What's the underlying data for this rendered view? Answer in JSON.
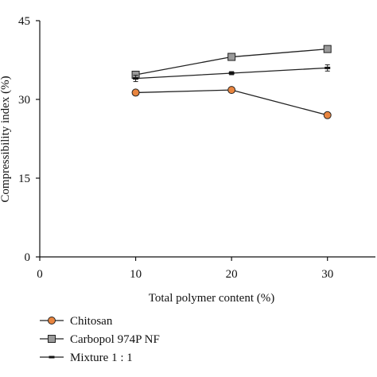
{
  "chart_data": {
    "type": "line",
    "xlabel": "Total polymer content (%)",
    "ylabel": "Compressibility index (%)",
    "xlim": [
      0,
      35
    ],
    "ylim": [
      0,
      45
    ],
    "x_ticks": [
      0,
      10,
      20,
      30
    ],
    "y_ticks": [
      0,
      15,
      30,
      45
    ],
    "x": [
      10,
      20,
      30
    ],
    "grid": false,
    "legend_position": "bottom-left",
    "series": [
      {
        "name": "Chitosan",
        "values": [
          31.3,
          31.8,
          27.0
        ],
        "marker": "circle",
        "color": "#e9853f",
        "errors": [
          0,
          0,
          0
        ]
      },
      {
        "name": "Carbopol 974P NF",
        "values": [
          34.7,
          38.1,
          39.6
        ],
        "marker": "square",
        "color": "#9a9a9a",
        "errors": [
          0.3,
          0.3,
          0.3
        ]
      },
      {
        "name": "Mixture 1 : 1",
        "values": [
          34.0,
          35.0,
          36.0
        ],
        "marker": "dash",
        "color": "#111111",
        "errors": [
          0.6,
          0.3,
          0.6
        ]
      }
    ]
  }
}
